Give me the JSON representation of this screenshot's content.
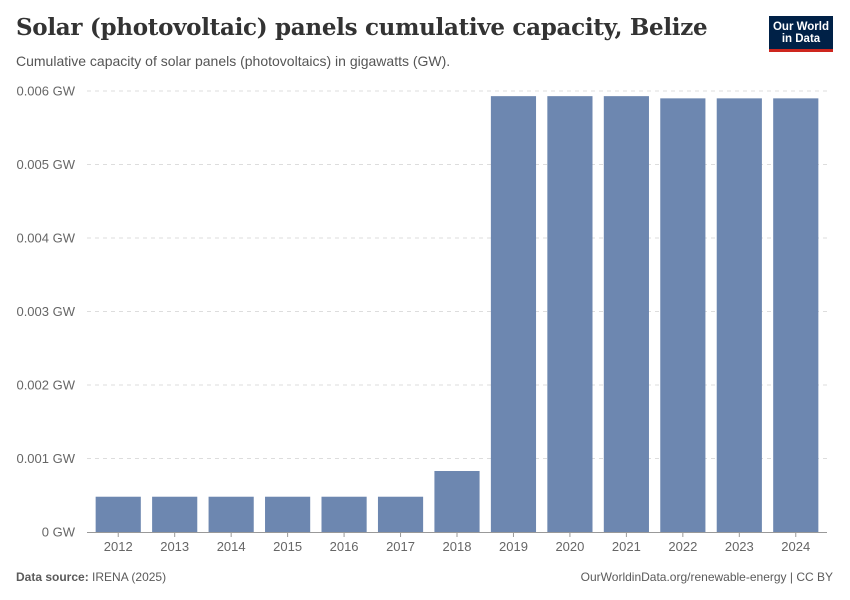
{
  "header": {
    "title": "Solar (photovoltaic) panels cumulative capacity, Belize",
    "subtitle": "Cumulative capacity of solar panels (photovoltaics) in gigawatts (GW)."
  },
  "logo": {
    "line1": "Our World",
    "line2": "in Data"
  },
  "footer": {
    "source_label": "Data source:",
    "source_value": "IRENA (2025)",
    "credit": "OurWorldinData.org/renewable-energy | CC BY"
  },
  "colors": {
    "bar": "#6d87b0",
    "grid": "#dddddd",
    "axis": "#999999",
    "tick_text": "#666666"
  },
  "chart_data": {
    "type": "bar",
    "title": "Solar (photovoltaic) panels cumulative capacity, Belize",
    "xlabel": "",
    "ylabel": "",
    "unit": "GW",
    "categories": [
      "2012",
      "2013",
      "2014",
      "2015",
      "2016",
      "2017",
      "2018",
      "2019",
      "2020",
      "2021",
      "2022",
      "2023",
      "2024"
    ],
    "values": [
      0.00048,
      0.00048,
      0.00048,
      0.00048,
      0.00048,
      0.00048,
      0.00083,
      0.00593,
      0.00593,
      0.00593,
      0.0059,
      0.0059,
      0.0059
    ],
    "ylim": [
      0,
      0.006
    ],
    "yticks": [
      {
        "value": 0,
        "label": "0 GW"
      },
      {
        "value": 0.001,
        "label": "0.001 GW"
      },
      {
        "value": 0.002,
        "label": "0.002 GW"
      },
      {
        "value": 0.003,
        "label": "0.003 GW"
      },
      {
        "value": 0.004,
        "label": "0.004 GW"
      },
      {
        "value": 0.005,
        "label": "0.005 GW"
      },
      {
        "value": 0.006,
        "label": "0.006 GW"
      }
    ],
    "grid": true,
    "legend": "none"
  }
}
